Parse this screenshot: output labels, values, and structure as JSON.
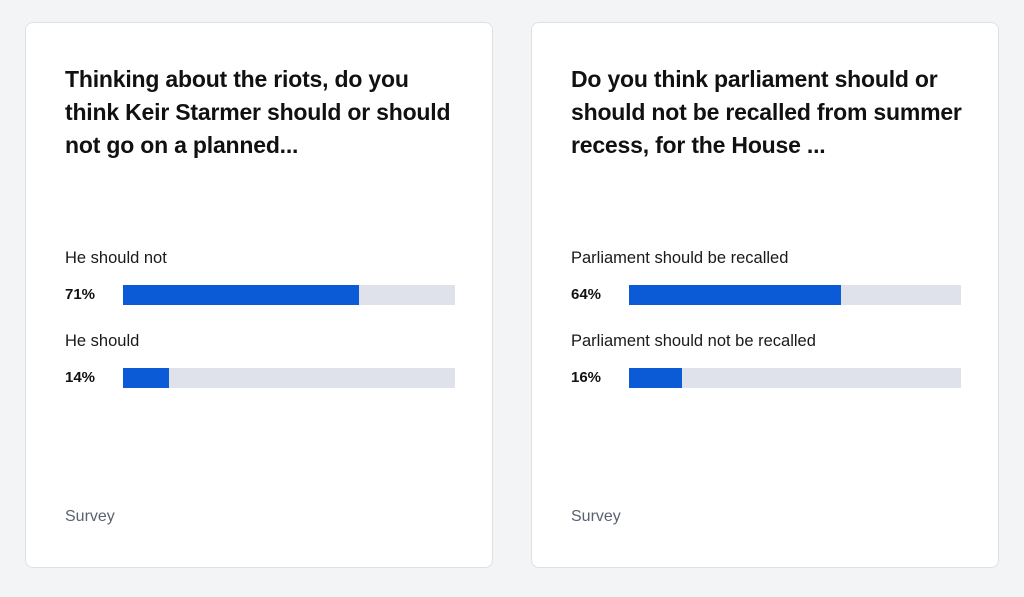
{
  "cards": [
    {
      "question": "Thinking about the riots, do you think Keir Starmer should or should not go on a planned...",
      "answers": [
        {
          "label": "He should not",
          "percent_label": "71%",
          "percent": 71
        },
        {
          "label": "He should",
          "percent_label": "14%",
          "percent": 14
        }
      ],
      "footer": "Survey"
    },
    {
      "question": "Do you think parliament should or should not be recalled from summer recess, for the House ...",
      "answers": [
        {
          "label": "Parliament should be recalled",
          "percent_label": "64%",
          "percent": 64
        },
        {
          "label": "Parliament should not be recalled",
          "percent_label": "16%",
          "percent": 16
        }
      ],
      "footer": "Survey"
    }
  ],
  "colors": {
    "bar_fill": "#0b5bd7",
    "bar_track": "#dfe2ea",
    "background": "#f3f4f6"
  }
}
